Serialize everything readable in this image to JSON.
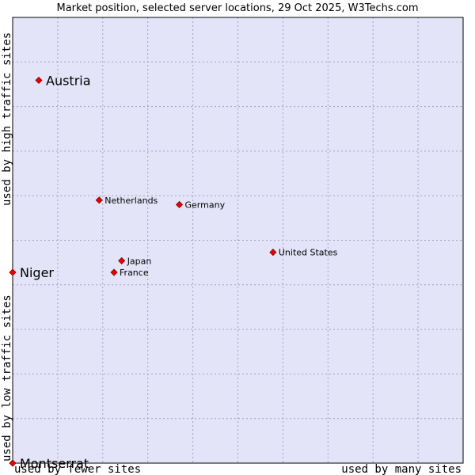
{
  "chart_data": {
    "type": "scatter",
    "title": "Market position, selected server locations, 29 Oct 2025, W3Techs.com",
    "xlabel_left": "used by fewer sites",
    "xlabel_right": "used by many sites",
    "ylabel_bottom": "used by low traffic sites",
    "ylabel_top": "used by high traffic sites",
    "xlim": [
      0,
      100
    ],
    "ylim": [
      0,
      100
    ],
    "grid": true,
    "colors": {
      "plot_bg": "#e4e4f8",
      "grid": "#a0a0c0",
      "frame": "#000000",
      "point": "#ee0000",
      "point_edge": "#880000"
    },
    "points": [
      {
        "name": "Austria",
        "x": 5.8,
        "y": 85.9,
        "label_size": "large"
      },
      {
        "name": "Netherlands",
        "x": 19.2,
        "y": 59.0,
        "label_size": "small"
      },
      {
        "name": "Germany",
        "x": 37.0,
        "y": 58.0,
        "label_size": "small"
      },
      {
        "name": "United States",
        "x": 57.8,
        "y": 47.3,
        "label_size": "small"
      },
      {
        "name": "Japan",
        "x": 24.2,
        "y": 45.4,
        "label_size": "small"
      },
      {
        "name": "France",
        "x": 22.5,
        "y": 42.8,
        "label_size": "small"
      },
      {
        "name": "Niger",
        "x": 0.0,
        "y": 42.8,
        "label_size": "large"
      },
      {
        "name": "Montserrat",
        "x": 0.0,
        "y": 0.0,
        "label_size": "large"
      }
    ]
  }
}
